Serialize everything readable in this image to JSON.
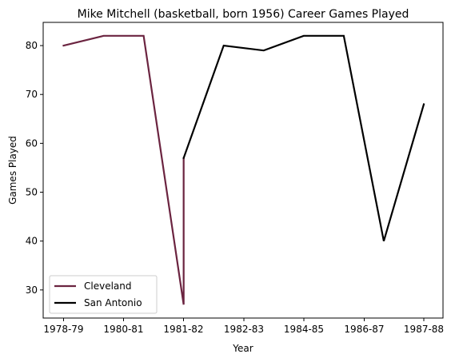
{
  "chart_data": {
    "type": "line",
    "title": "Mike Mitchell (basketball, born 1956) Career Games Played",
    "xlabel": "Year",
    "ylabel": "Games Played",
    "categories": [
      "1978-79",
      "1979-80",
      "1980-81",
      "1981-82",
      "1982-83",
      "1983-84",
      "1984-85",
      "1985-86",
      "1986-87",
      "1987-88"
    ],
    "x_tick_labels": [
      "1978-79",
      "1980-81",
      "1981-82",
      "1982-83",
      "1984-85",
      "1986-87",
      "1987-88"
    ],
    "yticks": [
      30,
      40,
      50,
      60,
      70,
      80
    ],
    "ylim": [
      24.25,
      84.75
    ],
    "grid": false,
    "legend_position": "lower-left",
    "series": [
      {
        "name": "Cleveland",
        "color": "#6b2440",
        "points": [
          {
            "x": "1978-79",
            "y": 80
          },
          {
            "x": "1979-80",
            "y": 82
          },
          {
            "x": "1980-81",
            "y": 82
          },
          {
            "x": "1981-82",
            "y": 27
          },
          {
            "x": "1981-82",
            "y": 57
          }
        ]
      },
      {
        "name": "San Antonio",
        "color": "#000000",
        "points": [
          {
            "x": "1981-82",
            "y": 57
          },
          {
            "x": "1982-83",
            "y": 80
          },
          {
            "x": "1983-84",
            "y": 79
          },
          {
            "x": "1984-85",
            "y": 82
          },
          {
            "x": "1985-86",
            "y": 82
          },
          {
            "x": "1986-87",
            "y": 40
          },
          {
            "x": "1987-88",
            "y": 68
          }
        ]
      }
    ]
  }
}
